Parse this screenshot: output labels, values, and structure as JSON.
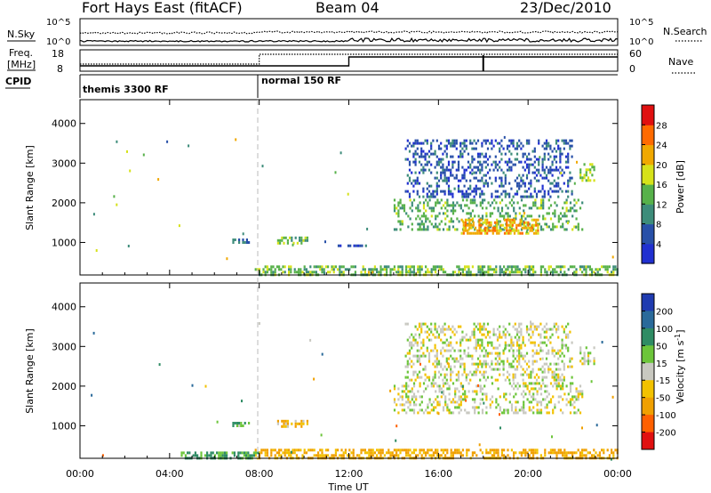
{
  "header": {
    "station": "Fort Hays East (fitACF)",
    "beam": "Beam 04",
    "date": "23/Dec/2010"
  },
  "top_panels": {
    "nsky_label": "N.Sky",
    "nsearch_label": "N.Search",
    "noise_left_ticks": [
      "10^5",
      "10^0"
    ],
    "noise_right_ticks": [
      "10^5",
      "10^0"
    ],
    "freq_label_line1": "Freq.",
    "freq_label_line2": "[MHz]",
    "freq_ticks": [
      "18",
      "8"
    ],
    "nave_label": "Nave",
    "nave_ticks": [
      "60",
      "0"
    ],
    "cpid_label": "CPID",
    "cpid_modes": [
      "themis 3300 RF",
      "normal 150 RF"
    ]
  },
  "chart_data": [
    {
      "type": "heatmap",
      "title": "",
      "xlabel": "Time UT",
      "ylabel": "Slant Range [km]",
      "x_range_hours": [
        0,
        24
      ],
      "x_ticks": [
        "00:00",
        "04:00",
        "08:00",
        "12:00",
        "16:00",
        "20:00",
        "00:00"
      ],
      "y_range": [
        180,
        4600
      ],
      "y_ticks": [
        1000,
        2000,
        3000,
        4000
      ],
      "colorbar": {
        "label": "Power [dB]",
        "ticks": [
          4,
          8,
          12,
          16,
          20,
          24,
          28
        ],
        "colors": [
          "#2030d0",
          "#2850a8",
          "#3d8c7a",
          "#57b14a",
          "#d6e21a",
          "#f0a800",
          "#ff6a00",
          "#e01010"
        ]
      },
      "mode_change_hour": 8.0,
      "echo_regions": [
        {
          "t_start": 7.8,
          "t_end": 24.0,
          "range_start": 180,
          "range_end": 420,
          "power_db": 14
        },
        {
          "t_start": 6.8,
          "t_end": 7.6,
          "range_start": 950,
          "range_end": 1100,
          "power_db": 8
        },
        {
          "t_start": 8.8,
          "t_end": 10.2,
          "range_start": 950,
          "range_end": 1150,
          "power_db": 14
        },
        {
          "t_start": 11.5,
          "t_end": 12.8,
          "range_start": 850,
          "range_end": 950,
          "power_db": 6
        },
        {
          "t_start": 14.0,
          "t_end": 22.5,
          "range_start": 1300,
          "range_end": 2100,
          "power_db": 13
        },
        {
          "t_start": 17.0,
          "t_end": 20.5,
          "range_start": 1200,
          "range_end": 1600,
          "power_db": 22
        },
        {
          "t_start": 14.5,
          "t_end": 22.0,
          "range_start": 2100,
          "range_end": 3600,
          "power_db": 6
        },
        {
          "t_start": 22.3,
          "t_end": 23.0,
          "range_start": 2500,
          "range_end": 3000,
          "power_db": 16
        }
      ]
    },
    {
      "type": "heatmap",
      "title": "",
      "xlabel": "Time UT",
      "ylabel": "Slant Range [km]",
      "x_range_hours": [
        0,
        24
      ],
      "x_ticks": [
        "00:00",
        "04:00",
        "08:00",
        "12:00",
        "16:00",
        "20:00",
        "00:00"
      ],
      "y_range": [
        180,
        4600
      ],
      "y_ticks": [
        1000,
        2000,
        3000,
        4000
      ],
      "colorbar": {
        "label": "Velocity [m s^-1]",
        "ticks": [
          200,
          100,
          50,
          15,
          -15,
          -50,
          -100,
          -200
        ],
        "colors": [
          "#1f3bb0",
          "#2a6a9a",
          "#2f8c64",
          "#6cc53a",
          "#c8c8c0",
          "#f2c200",
          "#f0a000",
          "#ff6000",
          "#e01010"
        ]
      },
      "mode_change_hour": 8.0,
      "echo_regions": [
        {
          "t_start": 7.8,
          "t_end": 24.0,
          "range_start": 180,
          "range_end": 420,
          "velocity_ms": -60
        },
        {
          "t_start": 4.5,
          "t_end": 8.0,
          "range_start": 180,
          "range_end": 350,
          "velocity_ms": 60
        },
        {
          "t_start": 6.8,
          "t_end": 7.6,
          "range_start": 950,
          "range_end": 1100,
          "velocity_ms": 40
        },
        {
          "t_start": 8.8,
          "t_end": 10.2,
          "range_start": 950,
          "range_end": 1150,
          "velocity_ms": -40
        },
        {
          "t_start": 14.0,
          "t_end": 22.5,
          "range_start": 1300,
          "range_end": 2100,
          "velocity_ms": 0
        },
        {
          "t_start": 14.5,
          "t_end": 22.0,
          "range_start": 2100,
          "range_end": 3600,
          "velocity_ms": 0
        },
        {
          "t_start": 22.3,
          "t_end": 23.0,
          "range_start": 2500,
          "range_end": 3000,
          "velocity_ms": 0
        }
      ]
    }
  ]
}
